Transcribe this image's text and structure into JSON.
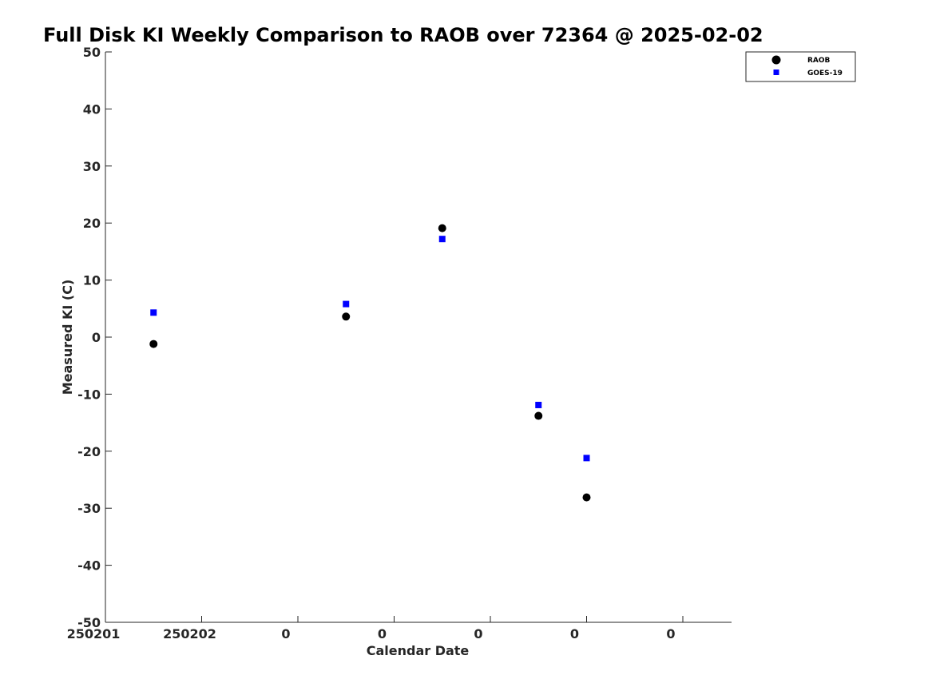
{
  "chart_data": {
    "type": "scatter",
    "title": "Full Disk KI Weekly Comparison to RAOB over 72364 @ 2025-02-02",
    "xlabel": "Calendar Date",
    "ylabel": "Measured KI (C)",
    "ylim": [
      -50,
      50
    ],
    "xlim": [
      0,
      6.5
    ],
    "yticks": [
      50,
      40,
      30,
      20,
      10,
      0,
      -10,
      -20,
      -30,
      -40,
      -50
    ],
    "ytick_labels": [
      "50",
      "40",
      "30",
      "20",
      "10",
      "0",
      "-10",
      "-20",
      "-30",
      "-40",
      "-50"
    ],
    "xticks": [
      0,
      1,
      2,
      3,
      4,
      5,
      6
    ],
    "xtick_labels": [
      "250201",
      "250202",
      "0",
      "0",
      "0",
      "0",
      "0"
    ],
    "grid": false,
    "legend_position": "top-right",
    "series": [
      {
        "name": "RAOB",
        "marker": "circle",
        "color": "#000000",
        "x": [
          0.5,
          2.5,
          3.5,
          4.5,
          5.0
        ],
        "y": [
          -1.2,
          3.6,
          19.1,
          -13.8,
          -28.1
        ]
      },
      {
        "name": "GOES-19",
        "marker": "square",
        "color": "#0000ff",
        "x": [
          0.5,
          2.5,
          3.5,
          4.5,
          5.0
        ],
        "y": [
          4.3,
          5.8,
          17.2,
          -11.9,
          -21.2
        ]
      }
    ]
  }
}
